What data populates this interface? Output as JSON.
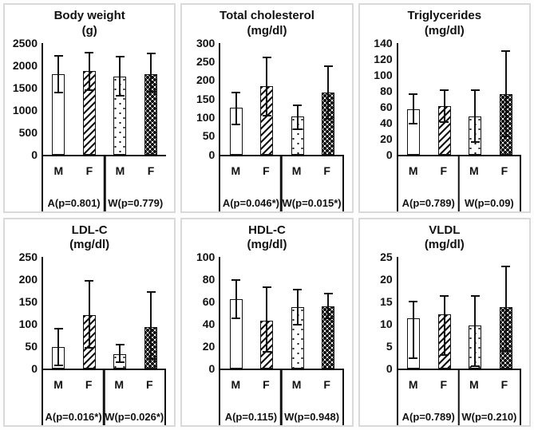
{
  "figure": {
    "panel_border_color": "#d9d9d9",
    "axis_color": "#111111",
    "text_color": "#111111",
    "bar_fill_color": "#ffffff"
  },
  "chart_data": [
    {
      "type": "bar",
      "title": "Body weight",
      "unit": "(g)",
      "ylim": [
        0,
        2500
      ],
      "yticks": [
        0,
        500,
        1000,
        1500,
        2000,
        2500
      ],
      "grid": false,
      "legend_position": "none",
      "categories": [
        "M",
        "F",
        "M",
        "F"
      ],
      "group_labels": [
        "A(p=0.801)",
        "W(p=0.779)"
      ],
      "layout": {
        "box_right_border": false
      },
      "series": [
        {
          "group": "A",
          "category": "M",
          "pattern": "plain",
          "mean": 1790,
          "err_low": 1380,
          "err_high": 2210
        },
        {
          "group": "A",
          "category": "F",
          "pattern": "diagonal-hatch",
          "mean": 1860,
          "err_low": 1430,
          "err_high": 2280
        },
        {
          "group": "W",
          "category": "M",
          "pattern": "sparse-dots",
          "mean": 1740,
          "err_low": 1310,
          "err_high": 2180
        },
        {
          "group": "W",
          "category": "F",
          "pattern": "dense-dots",
          "mean": 1790,
          "err_low": 1400,
          "err_high": 2260
        }
      ]
    },
    {
      "type": "bar",
      "title": "Total cholesterol",
      "unit": "(mg/dl)",
      "ylim": [
        0,
        300
      ],
      "yticks": [
        0,
        50,
        100,
        150,
        200,
        250,
        300
      ],
      "grid": false,
      "legend_position": "none",
      "categories": [
        "M",
        "F",
        "M",
        "F"
      ],
      "group_labels": [
        "A(p=0.046*)",
        "W(p=0.015*)"
      ],
      "layout": {
        "box_right_border": true
      },
      "series": [
        {
          "group": "A",
          "category": "M",
          "pattern": "plain",
          "mean": 126,
          "err_low": 81,
          "err_high": 166
        },
        {
          "group": "A",
          "category": "F",
          "pattern": "diagonal-hatch",
          "mean": 184,
          "err_low": 103,
          "err_high": 260
        },
        {
          "group": "W",
          "category": "M",
          "pattern": "sparse-dots",
          "mean": 101,
          "err_low": 68,
          "err_high": 131
        },
        {
          "group": "W",
          "category": "F",
          "pattern": "dense-dots",
          "mean": 166,
          "err_low": 95,
          "err_high": 237
        }
      ]
    },
    {
      "type": "bar",
      "title": "Triglycerides",
      "unit": "(mg/dl)",
      "ylim": [
        0,
        140
      ],
      "yticks": [
        0,
        20,
        40,
        60,
        80,
        100,
        120,
        140
      ],
      "grid": false,
      "legend_position": "none",
      "categories": [
        "M",
        "F",
        "M",
        "F"
      ],
      "group_labels": [
        "A(p=0.789)",
        "W(p=0.09)"
      ],
      "layout": {
        "box_right_border": true
      },
      "series": [
        {
          "group": "A",
          "category": "M",
          "pattern": "plain",
          "mean": 57,
          "err_low": 39,
          "err_high": 76
        },
        {
          "group": "A",
          "category": "F",
          "pattern": "diagonal-hatch",
          "mean": 61,
          "err_low": 41,
          "err_high": 81
        },
        {
          "group": "W",
          "category": "M",
          "pattern": "sparse-dots",
          "mean": 48,
          "err_low": 16,
          "err_high": 81
        },
        {
          "group": "W",
          "category": "F",
          "pattern": "dense-dots",
          "mean": 76,
          "err_low": 23,
          "err_high": 130
        }
      ]
    },
    {
      "type": "bar",
      "title": "LDL-C",
      "unit": "(mg/dl)",
      "ylim": [
        0,
        250
      ],
      "yticks": [
        0,
        50,
        100,
        150,
        200,
        250
      ],
      "grid": false,
      "legend_position": "none",
      "categories": [
        "M",
        "F",
        "M",
        "F"
      ],
      "group_labels": [
        "A(p=0.016*)",
        "W(p=0.026*)"
      ],
      "layout": {
        "box_right_border": true
      },
      "series": [
        {
          "group": "A",
          "category": "M",
          "pattern": "plain",
          "mean": 48,
          "err_low": 8,
          "err_high": 90
        },
        {
          "group": "A",
          "category": "F",
          "pattern": "diagonal-hatch",
          "mean": 120,
          "err_low": 47,
          "err_high": 196
        },
        {
          "group": "W",
          "category": "M",
          "pattern": "sparse-dots",
          "mean": 33,
          "err_low": 14,
          "err_high": 53
        },
        {
          "group": "W",
          "category": "F",
          "pattern": "dense-dots",
          "mean": 92,
          "err_low": 22,
          "err_high": 171
        }
      ]
    },
    {
      "type": "bar",
      "title": "HDL-C",
      "unit": "(mg/dl)",
      "ylim": [
        0,
        100
      ],
      "yticks": [
        0,
        20,
        40,
        60,
        80,
        100
      ],
      "grid": false,
      "legend_position": "none",
      "categories": [
        "M",
        "F",
        "M",
        "F"
      ],
      "group_labels": [
        "A(p=0.115)",
        "W(p=0.948)"
      ],
      "layout": {
        "box_right_border": true
      },
      "series": [
        {
          "group": "A",
          "category": "M",
          "pattern": "plain",
          "mean": 62,
          "err_low": 45,
          "err_high": 79
        },
        {
          "group": "A",
          "category": "F",
          "pattern": "diagonal-hatch",
          "mean": 43,
          "err_low": 15,
          "err_high": 73
        },
        {
          "group": "W",
          "category": "M",
          "pattern": "sparse-dots",
          "mean": 55,
          "err_low": 39,
          "err_high": 71
        },
        {
          "group": "W",
          "category": "F",
          "pattern": "dense-dots",
          "mean": 56,
          "err_low": 45,
          "err_high": 67
        }
      ]
    },
    {
      "type": "bar",
      "title": "VLDL",
      "unit": "(mg/dl)",
      "ylim": [
        0,
        25
      ],
      "yticks": [
        0,
        5,
        10,
        15,
        20,
        25
      ],
      "grid": false,
      "legend_position": "none",
      "categories": [
        "M",
        "F",
        "M",
        "F"
      ],
      "group_labels": [
        "A(p=0.789)",
        "W(p=0.210)"
      ],
      "layout": {
        "box_right_border": true
      },
      "series": [
        {
          "group": "A",
          "category": "M",
          "pattern": "plain",
          "mean": 11.3,
          "err_low": 2.3,
          "err_high": 15
        },
        {
          "group": "A",
          "category": "F",
          "pattern": "diagonal-hatch",
          "mean": 12.2,
          "err_low": 3.1,
          "err_high": 16.3
        },
        {
          "group": "W",
          "category": "M",
          "pattern": "sparse-dots",
          "mean": 9.6,
          "err_low": 0.6,
          "err_high": 16.2
        },
        {
          "group": "W",
          "category": "F",
          "pattern": "dense-dots",
          "mean": 13.7,
          "err_low": 4.0,
          "err_high": 22.8
        }
      ]
    }
  ]
}
